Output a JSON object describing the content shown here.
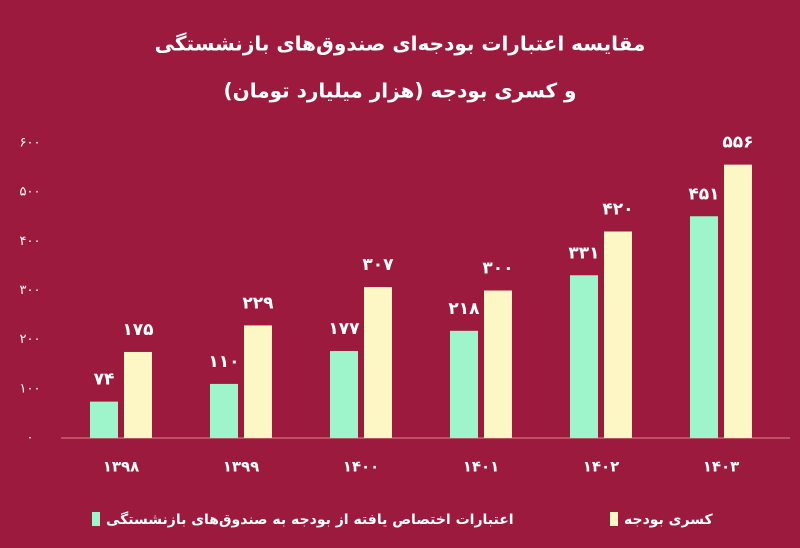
{
  "chart_data": {
    "type": "bar",
    "title": "مقایسه اعتبارات بودجه‌ای صندوق‌های بازنشستگی",
    "subtitle": "و کسری بودجه (هزار میلیارد تومان)",
    "categories": [
      "۱۳۹۸",
      "۱۳۹۹",
      "۱۴۰۰",
      "۱۴۰۱",
      "۱۴۰۲",
      "۱۴۰۳"
    ],
    "series": [
      {
        "name": "اعتبارات اختصاص یافته از بودجه به صندوق‌های بازنشستگی",
        "color": "#9ff5cb",
        "values": [
          74,
          110,
          177,
          218,
          331,
          451
        ],
        "value_labels": [
          "۷۴",
          "۱۱۰",
          "۱۷۷",
          "۲۱۸",
          "۳۳۱",
          "۴۵۱"
        ]
      },
      {
        "name": "کسری بودجه",
        "color": "#fdf7c6",
        "values": [
          175,
          229,
          307,
          300,
          420,
          556
        ],
        "value_labels": [
          "۱۷۵",
          "۲۲۹",
          "۳۰۷",
          "۳۰۰",
          "۴۲۰",
          "۵۵۶"
        ]
      }
    ],
    "ylim": [
      0,
      600
    ],
    "yticks": [
      {
        "value": 0,
        "label": "۰"
      },
      {
        "value": 100,
        "label": "۱۰۰"
      },
      {
        "value": 200,
        "label": "۲۰۰"
      },
      {
        "value": 300,
        "label": "۳۰۰"
      },
      {
        "value": 400,
        "label": "۴۰۰"
      },
      {
        "value": 500,
        "label": "۵۰۰"
      },
      {
        "value": 600,
        "label": "۶۰۰"
      }
    ],
    "grid": false
  }
}
